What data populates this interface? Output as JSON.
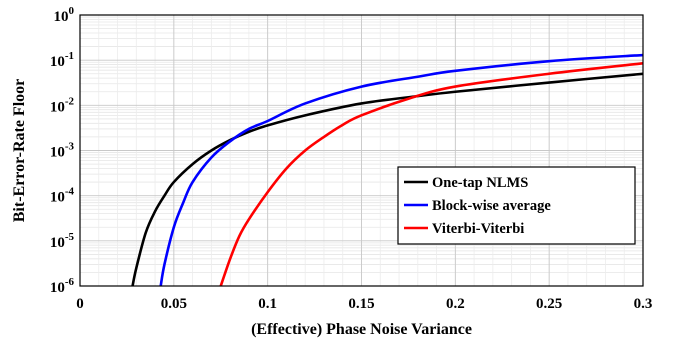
{
  "chart_data": {
    "type": "line",
    "xlabel": "(Effective) Phase Noise Variance",
    "ylabel": "Bit-Error-Rate Floor",
    "xlim": [
      0,
      0.3
    ],
    "ylim": [
      1e-06,
      1
    ],
    "yscale": "log",
    "grid": true,
    "legend_position": "bottom-right",
    "x_ticks": [
      "0",
      "0.05",
      "0.1",
      "0.15",
      "0.2",
      "0.25",
      "0.3"
    ],
    "y_ticks": [
      {
        "base": "10",
        "exp": "-6"
      },
      {
        "base": "10",
        "exp": "-5"
      },
      {
        "base": "10",
        "exp": "-4"
      },
      {
        "base": "10",
        "exp": "-3"
      },
      {
        "base": "10",
        "exp": "-2"
      },
      {
        "base": "10",
        "exp": "-1"
      },
      {
        "base": "10",
        "exp": "0"
      }
    ],
    "series": [
      {
        "name": "One-tap NLMS",
        "color": "#000000",
        "x": [
          0.028,
          0.03,
          0.035,
          0.04,
          0.045,
          0.05,
          0.06,
          0.07,
          0.08,
          0.09,
          0.1,
          0.12,
          0.15,
          0.18,
          0.2,
          0.25,
          0.3
        ],
        "y": [
          1e-06,
          2.5e-06,
          1.5e-05,
          4.5e-05,
          0.0001,
          0.0002,
          0.0005,
          0.001,
          0.0017,
          0.0026,
          0.0036,
          0.006,
          0.011,
          0.016,
          0.02,
          0.032,
          0.05
        ]
      },
      {
        "name": "Block-wise average",
        "color": "#0000ff",
        "x": [
          0.043,
          0.045,
          0.05,
          0.055,
          0.06,
          0.07,
          0.08,
          0.09,
          0.1,
          0.12,
          0.15,
          0.18,
          0.2,
          0.25,
          0.3
        ],
        "y": [
          1e-06,
          3e-06,
          2e-05,
          7e-05,
          0.0002,
          0.0007,
          0.0016,
          0.003,
          0.0045,
          0.011,
          0.026,
          0.043,
          0.058,
          0.095,
          0.13
        ]
      },
      {
        "name": "Viterbi-Viterbi",
        "color": "#ff0000",
        "x": [
          0.075,
          0.08,
          0.085,
          0.09,
          0.1,
          0.11,
          0.12,
          0.13,
          0.14,
          0.15,
          0.175,
          0.2,
          0.25,
          0.3
        ],
        "y": [
          1e-06,
          4e-06,
          1.3e-05,
          3e-05,
          0.00012,
          0.0004,
          0.001,
          0.002,
          0.0037,
          0.006,
          0.014,
          0.026,
          0.05,
          0.085
        ]
      }
    ]
  }
}
